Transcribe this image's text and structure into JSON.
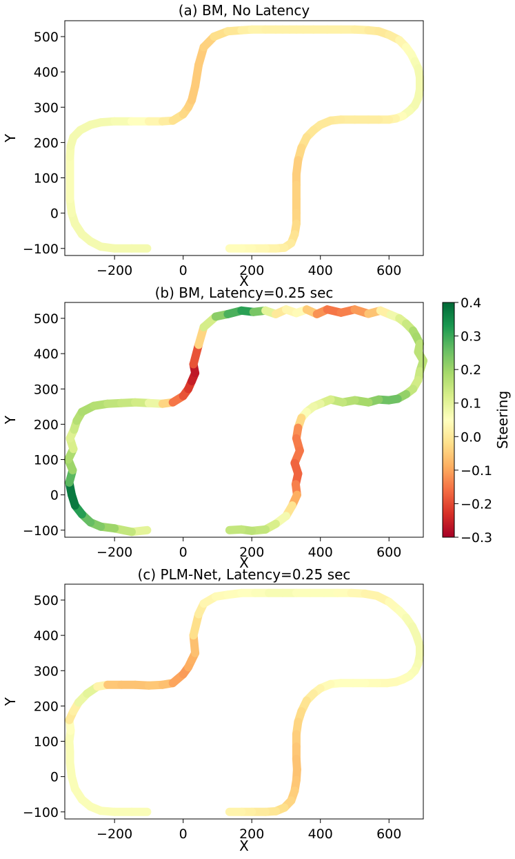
{
  "chart_data": [
    {
      "type": "line",
      "title": "(a) BM, No Latency",
      "xlabel": "X",
      "ylabel": "Y",
      "xlim": [
        -345,
        700
      ],
      "ylim": [
        -120,
        545
      ],
      "xticks": [
        -200,
        0,
        200,
        400,
        600
      ],
      "yticks": [
        -100,
        0,
        100,
        200,
        300,
        400,
        500
      ],
      "xtick_labels": [
        "−200",
        "0",
        "200",
        "400",
        "600"
      ],
      "ytick_labels": [
        "−100",
        "0",
        "100",
        "200",
        "300",
        "400",
        "500"
      ],
      "color_by": "Steering",
      "x": [
        -105,
        -150,
        -200,
        -240,
        -270,
        -295,
        -315,
        -325,
        -330,
        -330,
        -330,
        -330,
        -330,
        -328,
        -320,
        -300,
        -270,
        -240,
        -200,
        -150,
        -100,
        -60,
        -30,
        0,
        15,
        25,
        30,
        35,
        45,
        60,
        90,
        130,
        170,
        200,
        240,
        270,
        290,
        310,
        330,
        350,
        380,
        420,
        460,
        500,
        540,
        570,
        600,
        630,
        650,
        665,
        675,
        685,
        690,
        690,
        685,
        675,
        660,
        640,
        620,
        600,
        570,
        540,
        500,
        460,
        430,
        400,
        380,
        360,
        345,
        335,
        330,
        330,
        330,
        330,
        330,
        325,
        315,
        295,
        270,
        240,
        200,
        170,
        135
      ],
      "y": [
        -100,
        -100,
        -100,
        -95,
        -80,
        -60,
        -30,
        0,
        40,
        70,
        100,
        130,
        160,
        190,
        215,
        235,
        250,
        257,
        260,
        260,
        260,
        260,
        262,
        280,
        300,
        320,
        340,
        360,
        420,
        470,
        500,
        515,
        518,
        520,
        520,
        520,
        520,
        520,
        520,
        520,
        520,
        520,
        520,
        520,
        518,
        515,
        505,
        490,
        470,
        450,
        430,
        410,
        385,
        350,
        325,
        305,
        290,
        275,
        268,
        265,
        265,
        265,
        265,
        265,
        262,
        250,
        235,
        215,
        185,
        150,
        110,
        80,
        40,
        0,
        -30,
        -60,
        -85,
        -98,
        -100,
        -100,
        -100,
        -100,
        -100
      ],
      "values": [
        0.07,
        0.07,
        0.07,
        0.07,
        0.07,
        0.07,
        0.07,
        0.07,
        0.06,
        0.06,
        0.06,
        0.06,
        0.06,
        0.07,
        0.07,
        0.07,
        0.07,
        0.07,
        0.07,
        0.06,
        0.04,
        0.02,
        0.0,
        -0.03,
        -0.03,
        -0.05,
        -0.05,
        -0.05,
        -0.05,
        -0.05,
        -0.03,
        -0.01,
        0.0,
        0.03,
        0.02,
        0.02,
        0.02,
        0.02,
        0.02,
        0.02,
        0.02,
        0.02,
        0.02,
        0.02,
        0.01,
        0.0,
        0.0,
        0.02,
        0.04,
        0.05,
        0.06,
        0.07,
        0.07,
        0.07,
        0.07,
        0.07,
        0.07,
        0.06,
        0.03,
        0.02,
        0.01,
        0.01,
        0.01,
        0.01,
        0.0,
        0.0,
        0.0,
        -0.01,
        -0.02,
        -0.04,
        -0.05,
        -0.04,
        -0.04,
        -0.04,
        -0.03,
        -0.02,
        0.0,
        0.01,
        0.02,
        0.03,
        0.04,
        0.04,
        0.05
      ]
    },
    {
      "type": "line",
      "title": "(b) BM, Latency=0.25 sec",
      "xlabel": "X",
      "ylabel": "Y",
      "xlim": [
        -345,
        700
      ],
      "ylim": [
        -120,
        545
      ],
      "xticks": [
        -200,
        0,
        200,
        400,
        600
      ],
      "yticks": [
        -100,
        0,
        100,
        200,
        300,
        400,
        500
      ],
      "xtick_labels": [
        "−200",
        "0",
        "200",
        "400",
        "600"
      ],
      "ytick_labels": [
        "−100",
        "0",
        "100",
        "200",
        "300",
        "400",
        "500"
      ],
      "color_by": "Steering",
      "x": [
        -105,
        -150,
        -200,
        -240,
        -270,
        -295,
        -315,
        -325,
        -332,
        -322,
        -335,
        -320,
        -330,
        -318,
        -310,
        -295,
        -260,
        -220,
        -180,
        -140,
        -100,
        -60,
        -30,
        0,
        15,
        25,
        35,
        30,
        45,
        60,
        95,
        130,
        170,
        205,
        240,
        270,
        300,
        330,
        360,
        390,
        420,
        460,
        500,
        540,
        575,
        605,
        630,
        650,
        670,
        680,
        690,
        685,
        700,
        690,
        685,
        670,
        650,
        625,
        600,
        570,
        540,
        500,
        465,
        430,
        400,
        380,
        360,
        345,
        335,
        330,
        340,
        325,
        335,
        328,
        332,
        318,
        300,
        270,
        240,
        200,
        170,
        135
      ],
      "y": [
        -100,
        -105,
        -95,
        -90,
        -78,
        -55,
        -30,
        0,
        35,
        70,
        100,
        130,
        160,
        185,
        210,
        235,
        252,
        258,
        260,
        262,
        260,
        258,
        262,
        280,
        300,
        322,
        345,
        370,
        425,
        475,
        505,
        512,
        522,
        518,
        522,
        512,
        525,
        515,
        525,
        512,
        525,
        516,
        525,
        513,
        522,
        510,
        500,
        485,
        465,
        448,
        428,
        405,
        380,
        350,
        325,
        300,
        285,
        272,
        268,
        270,
        262,
        268,
        262,
        270,
        258,
        250,
        235,
        218,
        190,
        160,
        125,
        90,
        60,
        30,
        0,
        -30,
        -60,
        -82,
        -98,
        -102,
        -98,
        -100
      ],
      "values": [
        0.08,
        0.12,
        0.18,
        0.22,
        0.24,
        0.28,
        0.36,
        0.39,
        0.36,
        0.18,
        0.22,
        0.14,
        0.1,
        0.12,
        0.16,
        0.18,
        0.18,
        0.16,
        0.15,
        0.14,
        0.12,
        0.05,
        -0.12,
        -0.18,
        -0.2,
        -0.24,
        -0.27,
        -0.26,
        -0.12,
        0.05,
        0.2,
        0.24,
        0.33,
        0.3,
        0.18,
        0.02,
        -0.02,
        0.08,
        0.0,
        -0.1,
        -0.14,
        -0.16,
        -0.12,
        -0.1,
        -0.02,
        0.05,
        0.1,
        0.12,
        0.16,
        0.2,
        0.18,
        0.14,
        0.18,
        0.14,
        0.14,
        0.12,
        0.18,
        0.24,
        0.26,
        0.24,
        0.2,
        0.18,
        0.16,
        0.14,
        0.1,
        0.08,
        0.08,
        0.04,
        -0.1,
        -0.15,
        -0.14,
        -0.16,
        -0.18,
        -0.16,
        -0.12,
        -0.06,
        0.04,
        0.1,
        0.14,
        0.16,
        0.16,
        0.14
      ]
    },
    {
      "type": "line",
      "title": "(c) PLM-Net, Latency=0.25 sec",
      "xlabel": "X",
      "ylabel": "Y",
      "xlim": [
        -345,
        700
      ],
      "ylim": [
        -120,
        545
      ],
      "xticks": [
        -200,
        0,
        200,
        400,
        600
      ],
      "yticks": [
        -100,
        0,
        100,
        200,
        300,
        400,
        500
      ],
      "xtick_labels": [
        "−200",
        "0",
        "200",
        "400",
        "600"
      ],
      "ytick_labels": [
        "−100",
        "0",
        "100",
        "200",
        "300",
        "400",
        "500"
      ],
      "color_by": "Steering",
      "x": [
        -105,
        -150,
        -200,
        -240,
        -270,
        -295,
        -315,
        -325,
        -330,
        -330,
        -332,
        -328,
        -332,
        -320,
        -305,
        -280,
        -250,
        -220,
        -180,
        -140,
        -100,
        -60,
        -30,
        0,
        15,
        25,
        35,
        30,
        45,
        60,
        95,
        130,
        170,
        210,
        250,
        290,
        330,
        370,
        410,
        450,
        490,
        530,
        565,
        600,
        630,
        650,
        668,
        680,
        690,
        690,
        685,
        675,
        660,
        640,
        620,
        595,
        565,
        530,
        495,
        460,
        430,
        400,
        380,
        360,
        345,
        335,
        330,
        330,
        330,
        332,
        330,
        325,
        315,
        295,
        270,
        240,
        200,
        170,
        135
      ],
      "y": [
        -100,
        -100,
        -100,
        -97,
        -85,
        -65,
        -35,
        0,
        40,
        70,
        100,
        130,
        160,
        185,
        210,
        235,
        255,
        260,
        260,
        260,
        258,
        260,
        265,
        290,
        310,
        330,
        350,
        400,
        460,
        490,
        510,
        515,
        520,
        520,
        520,
        520,
        520,
        520,
        520,
        520,
        520,
        518,
        512,
        495,
        470,
        450,
        425,
        400,
        370,
        345,
        320,
        300,
        285,
        275,
        268,
        265,
        265,
        265,
        265,
        265,
        262,
        250,
        235,
        215,
        185,
        155,
        120,
        85,
        50,
        20,
        -10,
        -40,
        -68,
        -88,
        -98,
        -100,
        -100,
        -100,
        -100
      ],
      "values": [
        0.06,
        0.06,
        0.06,
        0.06,
        0.06,
        0.06,
        0.06,
        0.06,
        0.06,
        0.06,
        0.06,
        0.06,
        0.04,
        -0.04,
        0.07,
        0.1,
        0.1,
        -0.05,
        -0.06,
        -0.06,
        -0.06,
        -0.05,
        -0.08,
        -0.12,
        -0.1,
        -0.08,
        -0.09,
        -0.04,
        0.0,
        0.02,
        0.04,
        0.04,
        0.05,
        0.05,
        0.06,
        0.07,
        0.06,
        0.05,
        0.06,
        0.05,
        0.04,
        0.03,
        0.02,
        0.03,
        0.05,
        0.06,
        0.07,
        0.07,
        0.07,
        0.07,
        0.07,
        0.06,
        0.06,
        0.05,
        0.04,
        0.04,
        0.04,
        0.05,
        0.05,
        0.05,
        0.05,
        0.03,
        0.02,
        0.0,
        -0.02,
        -0.03,
        -0.04,
        -0.05,
        -0.06,
        -0.06,
        -0.06,
        -0.05,
        -0.04,
        -0.03,
        -0.01,
        0.0,
        0.01,
        0.02,
        0.03
      ]
    }
  ],
  "colorbar": {
    "label": "Steering",
    "min": -0.3,
    "max": 0.4,
    "colormap": "RdYlGn",
    "ticks": [
      0.4,
      0.3,
      0.2,
      0.1,
      0.0,
      -0.1,
      -0.2,
      -0.3
    ],
    "tick_labels": [
      "0.4",
      "0.3",
      "0.2",
      "0.1",
      "0.0",
      "−0.1",
      "−0.2",
      "−0.3"
    ],
    "stops": [
      "#a50026",
      "#d73027",
      "#f46d43",
      "#fdae61",
      "#fee08b",
      "#ffffbf",
      "#d9ef8b",
      "#a6d96a",
      "#66bd63",
      "#1a9850",
      "#006837"
    ]
  }
}
